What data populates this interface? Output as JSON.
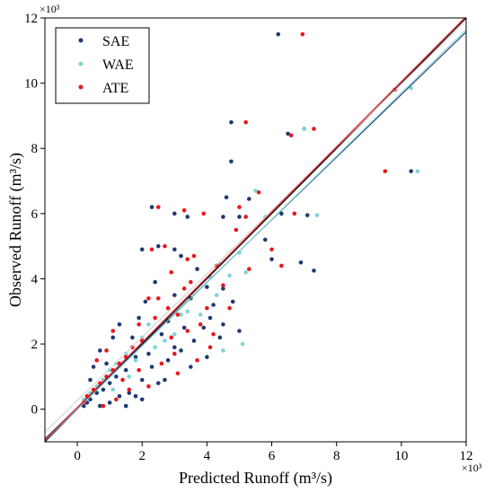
{
  "chart_data": {
    "type": "scatter",
    "xlabel": "Predicted Runoff (m³/s)",
    "ylabel": "Observed Runoff (m³/s)",
    "x_multiplier_label": "×10³",
    "y_multiplier_label": "×10³",
    "xlim": [
      -1,
      12
    ],
    "ylim": [
      -1,
      12
    ],
    "x_ticks": [
      0,
      2,
      4,
      6,
      8,
      10,
      12
    ],
    "y_ticks": [
      0,
      2,
      4,
      6,
      8,
      10,
      12
    ],
    "x_tick_labels": [
      "0",
      "2",
      "4",
      "6",
      "8",
      "10",
      "12"
    ],
    "y_tick_labels": [
      "0",
      "2",
      "4",
      "6",
      "8",
      "10",
      "12"
    ],
    "grid": false,
    "legend_position": "top-left",
    "series": [
      {
        "name": "SAE",
        "color": "#1f3a73",
        "fit_line": {
          "slope": 0.96,
          "intercept": 0.05
        },
        "points": [
          [
            6.2,
            11.5
          ],
          [
            10.3,
            7.3
          ],
          [
            4.75,
            8.8
          ],
          [
            4.75,
            7.6
          ],
          [
            6.5,
            8.45
          ],
          [
            7.0,
            8.6
          ],
          [
            7.1,
            5.95
          ],
          [
            4.5,
            5.9
          ],
          [
            5.0,
            5.9
          ],
          [
            6.0,
            4.6
          ],
          [
            6.9,
            4.5
          ],
          [
            7.3,
            4.25
          ],
          [
            6.3,
            6.0
          ],
          [
            5.3,
            6.45
          ],
          [
            5.8,
            5.2
          ],
          [
            4.6,
            6.5
          ],
          [
            2.3,
            6.2
          ],
          [
            3.0,
            6.0
          ],
          [
            3.4,
            5.9
          ],
          [
            2.0,
            4.9
          ],
          [
            2.5,
            5.0
          ],
          [
            3.0,
            4.9
          ],
          [
            3.7,
            4.3
          ],
          [
            3.2,
            4.7
          ],
          [
            4.0,
            3.75
          ],
          [
            4.5,
            3.7
          ],
          [
            4.2,
            3.2
          ],
          [
            4.8,
            3.3
          ],
          [
            3.5,
            3.4
          ],
          [
            3.0,
            3.5
          ],
          [
            2.8,
            2.7
          ],
          [
            3.3,
            2.5
          ],
          [
            3.9,
            2.5
          ],
          [
            4.4,
            2.2
          ],
          [
            4.1,
            2.8
          ],
          [
            2.4,
            3.9
          ],
          [
            2.1,
            3.3
          ],
          [
            1.9,
            2.8
          ],
          [
            3.6,
            2.1
          ],
          [
            4.5,
            2.6
          ],
          [
            5.0,
            2.4
          ],
          [
            1.7,
            2.2
          ],
          [
            2.6,
            2.3
          ],
          [
            3.0,
            1.9
          ],
          [
            2.2,
            1.7
          ],
          [
            1.8,
            1.6
          ],
          [
            1.5,
            1.2
          ],
          [
            1.2,
            1.0
          ],
          [
            1.0,
            0.8
          ],
          [
            0.8,
            0.6
          ],
          [
            0.6,
            0.5
          ],
          [
            0.4,
            0.3
          ],
          [
            0.3,
            0.2
          ],
          [
            0.2,
            0.1
          ],
          [
            2.3,
            1.3
          ],
          [
            2.8,
            1.5
          ],
          [
            3.2,
            1.8
          ],
          [
            2.0,
            0.9
          ],
          [
            1.6,
            0.5
          ],
          [
            1.3,
            0.4
          ],
          [
            1.0,
            0.2
          ],
          [
            0.7,
            0.1
          ],
          [
            2.5,
            0.8
          ],
          [
            2.0,
            0.3
          ],
          [
            1.5,
            0.1
          ],
          [
            0.9,
            1.4
          ],
          [
            0.7,
            1.8
          ],
          [
            1.1,
            2.2
          ],
          [
            1.3,
            2.6
          ],
          [
            0.5,
            1.3
          ],
          [
            0.4,
            0.9
          ],
          [
            1.8,
            0.4
          ],
          [
            2.7,
            0.9
          ],
          [
            3.5,
            1.3
          ],
          [
            4.0,
            1.6
          ]
        ]
      },
      {
        "name": "WAE",
        "color": "#7fd4d8",
        "fit_line": {
          "slope": 0.97,
          "intercept": 0.0
        },
        "points": [
          [
            10.5,
            7.3
          ],
          [
            10.3,
            9.85
          ],
          [
            7.0,
            8.6
          ],
          [
            7.4,
            5.95
          ],
          [
            5.5,
            6.7
          ],
          [
            5.8,
            5.9
          ],
          [
            5.0,
            4.8
          ],
          [
            4.4,
            4.45
          ],
          [
            4.7,
            4.1
          ],
          [
            5.2,
            4.2
          ],
          [
            4.1,
            4.05
          ],
          [
            3.0,
            2.3
          ],
          [
            3.4,
            3.0
          ],
          [
            2.7,
            2.1
          ],
          [
            4.3,
            3.5
          ],
          [
            4.5,
            1.8
          ],
          [
            5.1,
            2.0
          ],
          [
            3.8,
            2.9
          ],
          [
            3.2,
            2.9
          ],
          [
            2.2,
            2.6
          ],
          [
            2.0,
            2.2
          ],
          [
            1.5,
            1.7
          ],
          [
            1.2,
            1.4
          ],
          [
            1.0,
            1.2
          ],
          [
            0.8,
            0.9
          ],
          [
            0.6,
            0.7
          ],
          [
            0.4,
            0.5
          ],
          [
            0.2,
            0.3
          ],
          [
            1.8,
            1.5
          ],
          [
            2.4,
            1.9
          ],
          [
            1.6,
            1.0
          ],
          [
            1.1,
            0.6
          ]
        ]
      },
      {
        "name": "ATE",
        "color": "#e8181c",
        "fit_line": {
          "slope": 1.0,
          "intercept": 0.05
        },
        "points": [
          [
            6.95,
            11.5
          ],
          [
            9.8,
            9.8
          ],
          [
            9.5,
            7.3
          ],
          [
            5.2,
            8.8
          ],
          [
            6.6,
            8.4
          ],
          [
            7.3,
            8.6
          ],
          [
            6.7,
            6.0
          ],
          [
            5.0,
            6.2
          ],
          [
            4.9,
            5.5
          ],
          [
            5.3,
            4.3
          ],
          [
            6.0,
            4.9
          ],
          [
            6.3,
            4.4
          ],
          [
            5.6,
            6.65
          ],
          [
            5.2,
            5.9
          ],
          [
            3.3,
            6.1
          ],
          [
            2.5,
            6.2
          ],
          [
            3.9,
            6.0
          ],
          [
            2.7,
            5.0
          ],
          [
            2.3,
            4.9
          ],
          [
            3.4,
            4.6
          ],
          [
            3.6,
            4.7
          ],
          [
            4.3,
            4.4
          ],
          [
            4.5,
            3.8
          ],
          [
            3.5,
            3.9
          ],
          [
            3.3,
            3.7
          ],
          [
            2.9,
            4.2
          ],
          [
            4.0,
            3.1
          ],
          [
            3.8,
            2.6
          ],
          [
            4.2,
            2.3
          ],
          [
            4.7,
            3.1
          ],
          [
            3.1,
            2.9
          ],
          [
            2.5,
            3.4
          ],
          [
            2.8,
            3.1
          ],
          [
            2.2,
            3.4
          ],
          [
            2.4,
            2.8
          ],
          [
            3.4,
            2.4
          ],
          [
            1.9,
            2.6
          ],
          [
            2.0,
            2.1
          ],
          [
            1.7,
            1.9
          ],
          [
            1.5,
            1.6
          ],
          [
            1.3,
            1.4
          ],
          [
            1.1,
            1.2
          ],
          [
            0.9,
            1.0
          ],
          [
            0.7,
            0.8
          ],
          [
            0.5,
            0.6
          ],
          [
            0.3,
            0.4
          ],
          [
            0.2,
            0.2
          ],
          [
            2.6,
            1.4
          ],
          [
            3.0,
            1.7
          ],
          [
            1.9,
            1.2
          ],
          [
            1.6,
            0.6
          ],
          [
            1.2,
            0.3
          ],
          [
            0.8,
            0.1
          ],
          [
            0.9,
            1.8
          ],
          [
            1.1,
            2.4
          ],
          [
            0.6,
            1.5
          ],
          [
            2.2,
            0.7
          ],
          [
            3.1,
            1.1
          ],
          [
            4.1,
            1.9
          ],
          [
            3.7,
            1.5
          ],
          [
            1.4,
            0.9
          ],
          [
            2.9,
            2.2
          ]
        ]
      }
    ]
  }
}
